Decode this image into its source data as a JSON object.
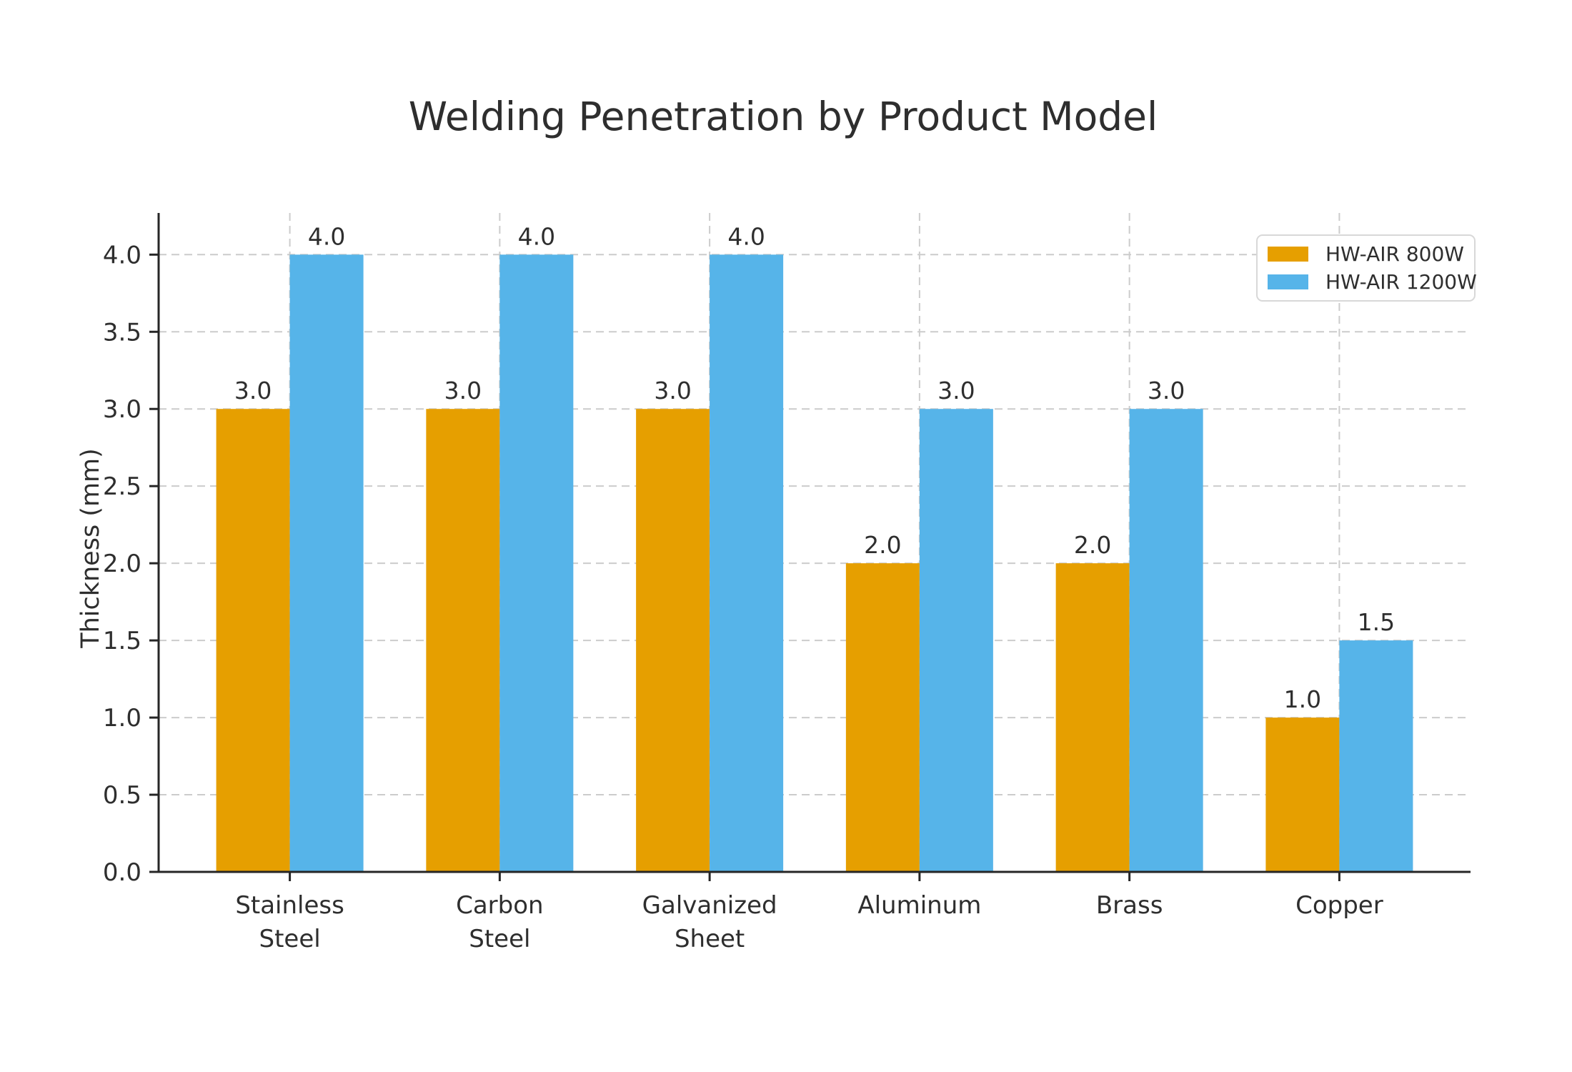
{
  "chart_data": {
    "type": "bar",
    "title": "Welding Penetration by Product Model",
    "categories": [
      "Stainless\nSteel",
      "Carbon\nSteel",
      "Galvanized\nSheet",
      "Aluminum",
      "Brass",
      "Copper"
    ],
    "series": [
      {
        "name": "HW-AIR 800W",
        "color": "#E69F00",
        "values": [
          3.0,
          3.0,
          3.0,
          2.0,
          2.0,
          1.0
        ]
      },
      {
        "name": "HW-AIR 1200W",
        "color": "#56B4E9",
        "values": [
          4.0,
          4.0,
          4.0,
          3.0,
          3.0,
          1.5
        ]
      }
    ],
    "xlabel": "",
    "ylabel": "Thickness (mm)",
    "ylim": [
      0,
      4.27
    ],
    "yticks": [
      0.0,
      0.5,
      1.0,
      1.5,
      2.0,
      2.5,
      3.0,
      3.5,
      4.0
    ],
    "grid": true,
    "grid_style": "dashed",
    "value_labels": true,
    "legend_position": "upper right",
    "colors": {
      "text": "#2e2e2e",
      "spine": "#262626",
      "grid": "#cccccc",
      "background": "#ffffff"
    }
  }
}
